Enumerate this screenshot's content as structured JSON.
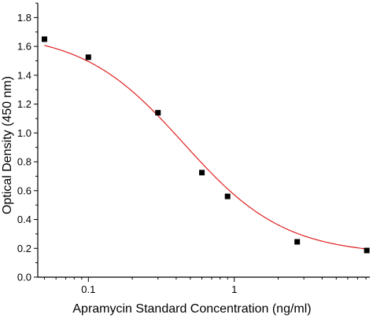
{
  "chart_data": {
    "type": "scatter",
    "xlabel": "Apramycin Standard Concentration (ng/ml)",
    "ylabel": "Optical Density (450 nm)",
    "x_scale": "log",
    "xlim": [
      0.045,
      8.5
    ],
    "ylim": [
      0,
      1.9
    ],
    "x_major_ticks": [
      {
        "value": 0.1,
        "label": "0.1"
      },
      {
        "value": 1,
        "label": "1"
      }
    ],
    "y_ticks": [
      {
        "value": 0.0,
        "label": "0.0"
      },
      {
        "value": 0.2,
        "label": "0.2"
      },
      {
        "value": 0.4,
        "label": "0.4"
      },
      {
        "value": 0.6,
        "label": "0.6"
      },
      {
        "value": 0.8,
        "label": "0.8"
      },
      {
        "value": 1.0,
        "label": "1.0"
      },
      {
        "value": 1.2,
        "label": "1.2"
      },
      {
        "value": 1.4,
        "label": "1.4"
      },
      {
        "value": 1.6,
        "label": "1.6"
      },
      {
        "value": 1.8,
        "label": "1.8"
      }
    ],
    "points": {
      "x": [
        0.05,
        0.1,
        0.3,
        0.6,
        0.9,
        2.7,
        8.1
      ],
      "y": [
        1.65,
        1.525,
        1.14,
        0.725,
        0.56,
        0.245,
        0.185
      ]
    },
    "fit_curve": {
      "model": "4-parameter logistic",
      "top": 1.7,
      "bottom": 0.155,
      "ec50": 0.45,
      "hill": 1.25
    },
    "grid": false,
    "legend": "none",
    "colors": {
      "points": "#000000",
      "curve": "#e02020",
      "axis": "#000000"
    }
  }
}
